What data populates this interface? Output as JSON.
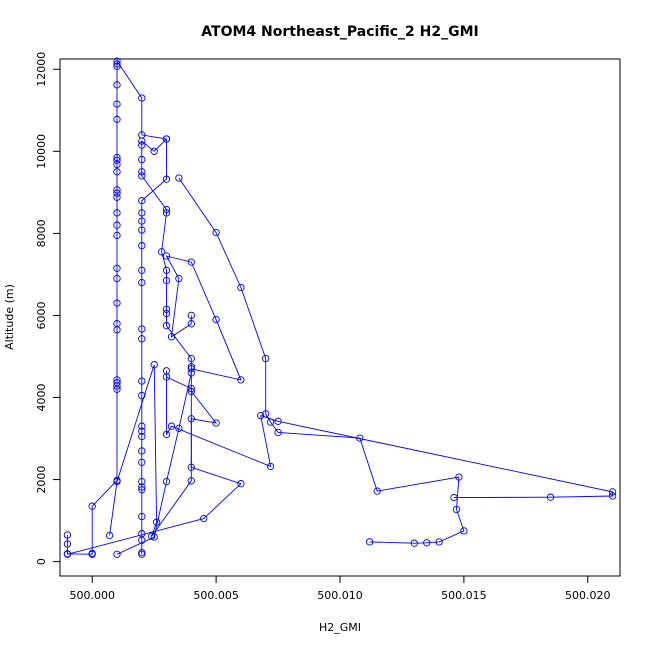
{
  "chart_data": {
    "type": "line",
    "title": "ATOM4 Northeast_Pacific_2 H2_GMI",
    "xlabel": "H2_GMI",
    "ylabel": "Altitude (m)",
    "xlim": [
      499.9987,
      500.0213
    ],
    "ylim": [
      -350,
      12250
    ],
    "x_ticks": [
      500.0,
      500.005,
      500.01,
      500.015,
      500.02
    ],
    "x_tick_labels": [
      "500.000",
      "500.005",
      "500.010",
      "500.015",
      "500.020"
    ],
    "y_ticks": [
      0,
      2000,
      4000,
      6000,
      8000,
      10000,
      12000
    ],
    "y_tick_labels": [
      "0",
      "2000",
      "4000",
      "6000",
      "8000",
      "10000",
      "12000"
    ],
    "grid": false,
    "marker": "open-circle",
    "series_color": "#0000ff",
    "series": [
      {
        "points": [
          [
            499.999,
            650
          ],
          [
            499.999,
            430
          ],
          [
            499.999,
            190
          ],
          [
            500.0,
            180
          ],
          [
            500.0,
            200
          ],
          [
            500.0,
            1350
          ],
          [
            500.001,
            1980
          ],
          [
            500.001,
            4200
          ],
          [
            500.001,
            4280
          ],
          [
            500.001,
            4360
          ],
          [
            500.001,
            4430
          ],
          [
            500.001,
            5650
          ],
          [
            500.001,
            5800
          ],
          [
            500.001,
            6300
          ],
          [
            500.001,
            6900
          ],
          [
            500.001,
            7150
          ],
          [
            500.001,
            7950
          ],
          [
            500.001,
            8200
          ],
          [
            500.001,
            8500
          ],
          [
            500.001,
            8880
          ],
          [
            500.001,
            8980
          ],
          [
            500.001,
            9060
          ],
          [
            500.001,
            9500
          ],
          [
            500.001,
            9680
          ],
          [
            500.001,
            9780
          ],
          [
            500.001,
            9850
          ],
          [
            500.001,
            10780
          ],
          [
            500.001,
            11150
          ],
          [
            500.001,
            11620
          ],
          [
            500.001,
            12070
          ],
          [
            500.001,
            12130
          ],
          [
            500.001,
            12200
          ],
          [
            500.002,
            11300
          ],
          [
            500.002,
            10400
          ],
          [
            500.003,
            10300
          ],
          [
            500.003,
            9320
          ],
          [
            500.002,
            8800
          ],
          [
            500.002,
            8500
          ],
          [
            500.002,
            8300
          ],
          [
            500.002,
            8080
          ],
          [
            500.002,
            7700
          ],
          [
            500.002,
            7100
          ],
          [
            500.002,
            6800
          ],
          [
            500.002,
            5670
          ],
          [
            500.002,
            5430
          ],
          [
            500.002,
            4400
          ],
          [
            500.002,
            4050
          ],
          [
            500.002,
            3300
          ],
          [
            500.002,
            3180
          ],
          [
            500.002,
            3050
          ],
          [
            500.002,
            2700
          ],
          [
            500.002,
            2420
          ],
          [
            500.002,
            1950
          ],
          [
            500.002,
            1820
          ],
          [
            500.002,
            1750
          ],
          [
            500.002,
            1100
          ],
          [
            500.002,
            680
          ],
          [
            500.002,
            520
          ],
          [
            500.002,
            220
          ],
          [
            500.002,
            180
          ]
        ]
      },
      {
        "points": [
          [
            500.001,
            180
          ],
          [
            500.0025,
            600
          ],
          [
            500.003,
            1950
          ],
          [
            500.0035,
            3250
          ],
          [
            500.004,
            4600
          ],
          [
            500.004,
            4750
          ],
          [
            500.004,
            4950
          ],
          [
            500.003,
            5750
          ],
          [
            500.003,
            6050
          ],
          [
            500.003,
            6150
          ],
          [
            500.003,
            6850
          ],
          [
            500.003,
            7100
          ],
          [
            500.0028,
            7550
          ],
          [
            500.003,
            8500
          ],
          [
            500.003,
            8580
          ],
          [
            500.002,
            9400
          ],
          [
            500.002,
            9500
          ],
          [
            500.002,
            9800
          ],
          [
            500.002,
            10150
          ],
          [
            500.002,
            10250
          ],
          [
            500.0025,
            10000
          ],
          [
            500.003,
            10300
          ]
        ]
      },
      {
        "points": [
          [
            500.0035,
            9350
          ],
          [
            500.005,
            8020
          ],
          [
            500.006,
            6680
          ],
          [
            500.007,
            4950
          ],
          [
            500.007,
            3600
          ],
          [
            500.0072,
            3400
          ],
          [
            500.0075,
            3150
          ],
          [
            500.0108,
            3010
          ],
          [
            500.0115,
            1720
          ],
          [
            500.0148,
            2060
          ],
          [
            500.0147,
            1270
          ],
          [
            500.015,
            750
          ],
          [
            500.014,
            480
          ],
          [
            500.0135,
            460
          ],
          [
            500.013,
            450
          ],
          [
            500.0112,
            480
          ]
        ]
      },
      {
        "points": [
          [
            499.999,
            180
          ],
          [
            500.0045,
            1050
          ],
          [
            500.006,
            1900
          ],
          [
            500.004,
            2300
          ],
          [
            500.004,
            3480
          ],
          [
            500.005,
            3380
          ],
          [
            500.004,
            4150
          ],
          [
            500.004,
            4220
          ],
          [
            500.003,
            4500
          ],
          [
            500.003,
            4650
          ],
          [
            500.003,
            3100
          ],
          [
            500.0032,
            3300
          ],
          [
            500.0072,
            2320
          ],
          [
            500.0068,
            3560
          ],
          [
            500.0075,
            3420
          ],
          [
            500.021,
            1700
          ],
          [
            500.021,
            1600
          ],
          [
            500.0185,
            1570
          ],
          [
            500.0146,
            1560
          ]
        ]
      },
      {
        "points": [
          [
            500.0007,
            640
          ],
          [
            500.001,
            1950
          ],
          [
            500.0025,
            4800
          ],
          [
            500.0026,
            960
          ],
          [
            500.0024,
            620
          ],
          [
            500.004,
            1970
          ],
          [
            500.004,
            4700
          ],
          [
            500.006,
            4430
          ],
          [
            500.005,
            5900
          ],
          [
            500.004,
            7300
          ],
          [
            500.003,
            7450
          ],
          [
            500.0035,
            6900
          ],
          [
            500.0032,
            5480
          ],
          [
            500.004,
            5800
          ],
          [
            500.004,
            6000
          ]
        ]
      }
    ]
  }
}
